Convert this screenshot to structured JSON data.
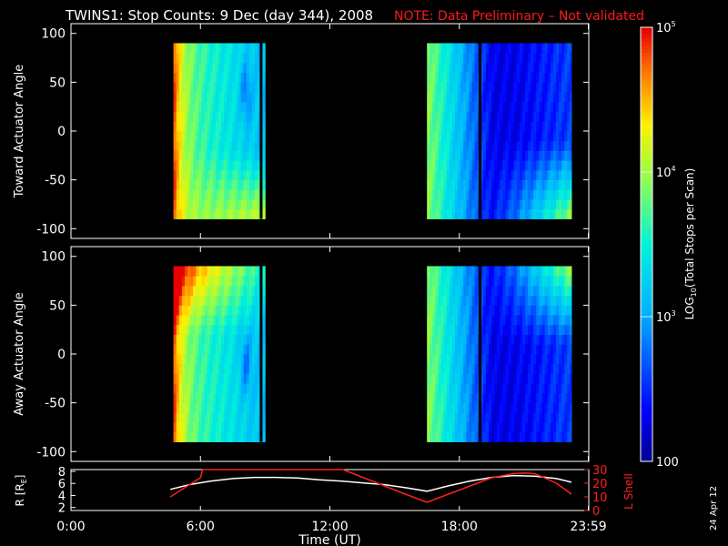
{
  "header": {
    "title": "TWINS1: Stop Counts:  9 Dec (day 344), 2008",
    "note": "NOTE: Data Preliminary – Not validated",
    "note_color": "#ff1a1a"
  },
  "footer": {
    "stamp": "24 Apr 12"
  },
  "colors": {
    "ephem_r": "#ffffff",
    "ephem_l": "#ff2020",
    "axes": "#ffffff"
  },
  "chart_data": [
    {
      "type": "heatmap",
      "panel": "toward",
      "ylabel": "Toward Actuator Angle",
      "ylim": [
        -110,
        110
      ],
      "yticks": [
        100,
        50,
        0,
        -50,
        -100
      ],
      "xlim": [
        0,
        24
      ],
      "angle_range": [
        -90,
        90
      ],
      "data_intervals_hours": [
        [
          4.75,
          9.0
        ],
        [
          16.5,
          23.2
        ]
      ],
      "gap_lines_hours": [
        8.75,
        18.9
      ]
    },
    {
      "type": "heatmap",
      "panel": "away",
      "ylabel": "Away Actuator Angle",
      "ylim": [
        -110,
        110
      ],
      "yticks": [
        100,
        50,
        0,
        -50,
        -100
      ],
      "xlim": [
        0,
        24
      ],
      "angle_range": [
        -90,
        90
      ],
      "data_intervals_hours": [
        [
          4.75,
          9.0
        ],
        [
          16.5,
          23.2
        ]
      ],
      "gap_lines_hours": [
        8.75,
        18.9
      ]
    },
    {
      "type": "line",
      "panel": "ephemeris",
      "ylabel_left": "R [R",
      "ylabel_left_sub": "E",
      "ylabel_left_end": "]",
      "ylabel_right": "L Shell",
      "xlabel": "Time (UT)",
      "xlim": [
        0,
        24
      ],
      "xticks": [
        "0:00",
        "6:00",
        "12:00",
        "18:00",
        "23:59"
      ],
      "xtick_hours": [
        0,
        6,
        12,
        18,
        23.98
      ],
      "yticks_left": [
        8,
        6,
        4,
        2
      ],
      "ylim_left": [
        1.5,
        8.3
      ],
      "yticks_right": [
        30,
        20,
        10,
        0
      ],
      "ylim_right": [
        0,
        30
      ],
      "series": [
        {
          "x": [
            4.6,
            5.5,
            6.5,
            7.5,
            8.5,
            9.5,
            10.5,
            11.5,
            12.5,
            13.5,
            14.5,
            15.5,
            16.5,
            17.5,
            18.5,
            19.5,
            20.5,
            21.5,
            22.5,
            23.2
          ],
          "values": [
            5.0,
            5.8,
            6.4,
            6.8,
            7.0,
            7.0,
            6.9,
            6.6,
            6.4,
            6.1,
            5.8,
            5.3,
            4.7,
            5.6,
            6.4,
            7.0,
            7.3,
            7.2,
            6.8,
            6.2
          ]
        },
        {
          "x": [
            4.6,
            5.3,
            6.0,
            6.1,
            12.6,
            15.5,
            16.5,
            17.5,
            18.5,
            19.5,
            20.5,
            21.0,
            21.5,
            22.5,
            23.2
          ],
          "values": [
            10.0,
            17.0,
            24.0,
            30.0,
            30.0,
            12.0,
            6.0,
            12.0,
            18.0,
            24.0,
            27.0,
            27.5,
            27.0,
            20.0,
            12.0
          ]
        }
      ]
    },
    {
      "type": "heatmap",
      "panel": "colorbar",
      "label": "LOG",
      "label_sub": "10",
      "label_end": "(Total Stops per Scan)",
      "range": [
        100,
        100000
      ],
      "ticks": [
        {
          "value": 100000,
          "base": "10",
          "exp": "5"
        },
        {
          "value": 10000,
          "base": "10",
          "exp": "4"
        },
        {
          "value": 1000,
          "base": "10",
          "exp": "3"
        },
        {
          "value": 100,
          "text": "100"
        }
      ]
    }
  ]
}
